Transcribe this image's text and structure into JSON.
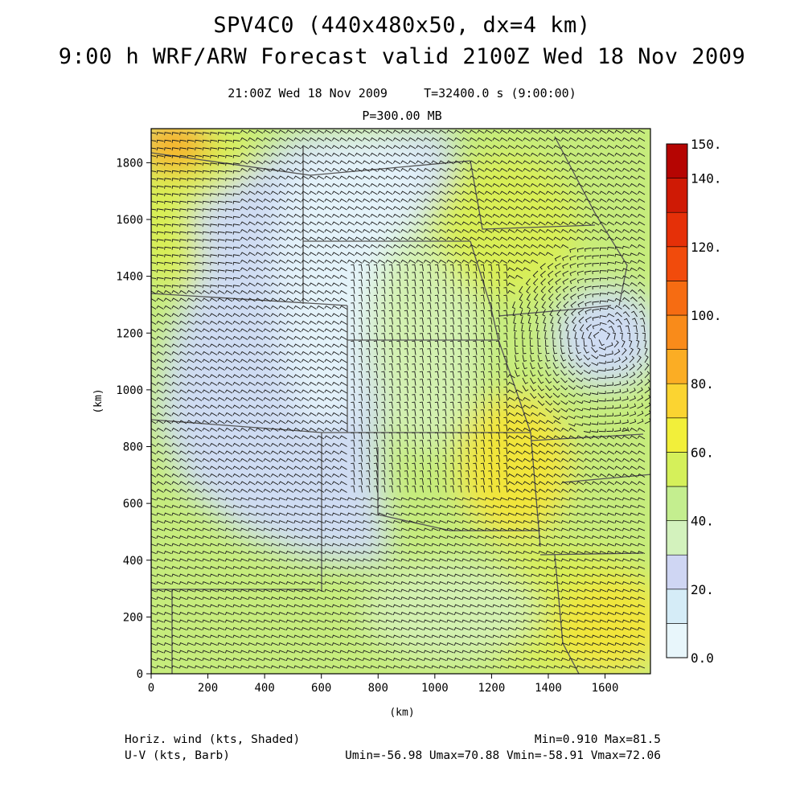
{
  "title_line1": "SPV4C0 (440x480x50, dx=4 km)",
  "title_line2": "9:00 h WRF/ARW Forecast valid 2100Z Wed 18 Nov 2009",
  "subtitle_time": "21:00Z Wed 18 Nov 2009     T=32400.0 s (9:00:00)",
  "subtitle_level": "P=300.00 MB",
  "footer": {
    "field1": "Horiz. wind (kts, Shaded)",
    "field2": "U-V (kts, Barb)",
    "stats1": "Min=0.910 Max=81.5",
    "stats2": "Umin=-56.98 Umax=70.88 Vmin=-58.91 Vmax=72.06"
  },
  "map": {
    "x_label": "(km)",
    "y_label": "(km)",
    "x_ticks": [
      "0",
      "200",
      "400",
      "600",
      "800",
      "1000",
      "1200",
      "1400",
      "1600"
    ],
    "x_tick_values": [
      0,
      200,
      400,
      600,
      800,
      1000,
      1200,
      1400,
      1600
    ],
    "y_ticks": [
      "0",
      "200",
      "400",
      "600",
      "800",
      "1000",
      "1200",
      "1400",
      "1600",
      "1800"
    ],
    "y_tick_values": [
      0,
      200,
      400,
      600,
      800,
      1000,
      1200,
      1400,
      1600,
      1800
    ],
    "x_range": [
      0,
      1760
    ],
    "y_range": [
      0,
      1920
    ]
  },
  "colorbar": {
    "labels": [
      "150.",
      "140.",
      "120.",
      "100.",
      "80.",
      "60.",
      "40.",
      "20.",
      "0.0"
    ],
    "label_values": [
      150,
      140,
      120,
      100,
      80,
      60,
      40,
      20,
      0
    ],
    "levels": [
      0,
      10,
      20,
      30,
      40,
      50,
      60,
      70,
      80,
      90,
      100,
      110,
      120,
      130,
      140,
      150
    ],
    "colors": [
      "#e8f6fb",
      "#d5ecf7",
      "#cfd6f3",
      "#d3f2bd",
      "#c4ee8f",
      "#d5f05a",
      "#f2ef3a",
      "#fbd431",
      "#fbad24",
      "#f98b1a",
      "#f66c12",
      "#f14b0c",
      "#e53008",
      "#cf1a05",
      "#b50502"
    ]
  },
  "palette": {
    "light_blue": "#cfdcf3",
    "pale_blue": "#e4f3fa",
    "light_green": "#d3f1b0",
    "green": "#c6ec7c",
    "yellow_green": "#d9ee55",
    "yellow": "#f1e53a",
    "orange": "#f6b42c",
    "border": "#555555",
    "barb": "#1a1a1a"
  }
}
